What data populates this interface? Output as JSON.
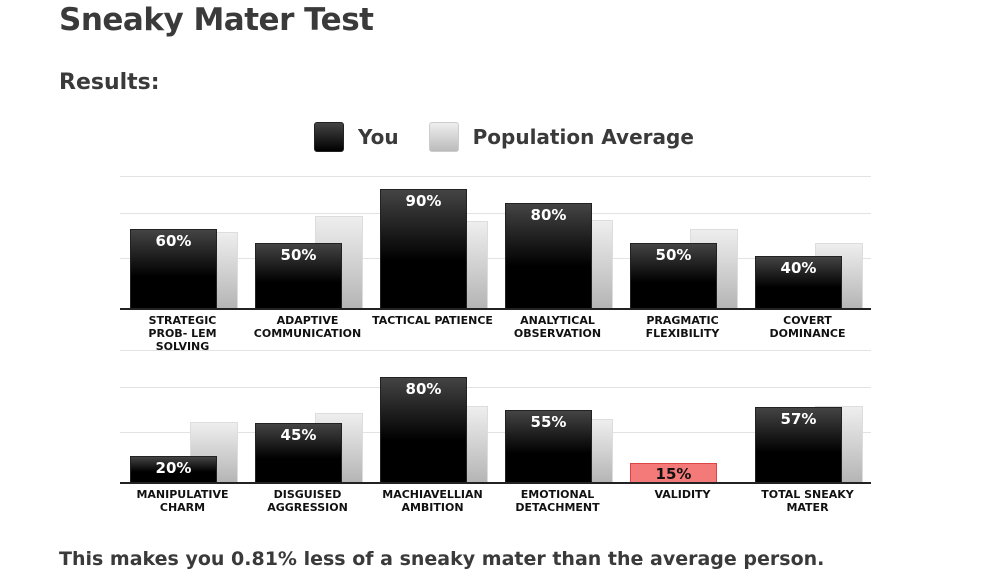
{
  "title": "Sneaky Mater Test",
  "subtitle": "Results:",
  "legend": {
    "you": "You",
    "population": "Population Average"
  },
  "colors": {
    "you": "#000000",
    "population": "#cccccc",
    "validity": "#f47a7a"
  },
  "chart_data": [
    {
      "type": "bar",
      "ylim": [
        0,
        100
      ],
      "categories": [
        "STRATEGIC PROB- LEM SOLVING",
        "ADAPTIVE COMMUNICATION",
        "TACTICAL PATIENCE",
        "ANALYTICAL OBSERVATION",
        "PRAGMATIC FLEXIBILITY",
        "COVERT DOMINANCE"
      ],
      "series": [
        {
          "name": "You",
          "values": [
            60,
            50,
            90,
            80,
            50,
            40
          ],
          "labels": [
            "60%",
            "50%",
            "90%",
            "80%",
            "50%",
            "40%"
          ]
        },
        {
          "name": "Population Average",
          "values": [
            58,
            70,
            66,
            67,
            60,
            50
          ]
        }
      ]
    },
    {
      "type": "bar",
      "ylim": [
        0,
        100
      ],
      "categories": [
        "MANIPULATIVE CHARM",
        "DISGUISED AGGRESSION",
        "MACHIAVELLIAN AMBITION",
        "EMOTIONAL DETACHMENT",
        "VALIDITY",
        "TOTAL SNEAKY MATER"
      ],
      "series": [
        {
          "name": "You",
          "values": [
            20,
            45,
            80,
            55,
            15,
            57
          ],
          "labels": [
            "20%",
            "45%",
            "80%",
            "55%",
            "15%",
            "57%"
          ]
        },
        {
          "name": "Population Average",
          "values": [
            46,
            53,
            58,
            48,
            null,
            58
          ]
        }
      ]
    }
  ],
  "message": "This makes you 0.81% less of a sneaky mater than the average person."
}
